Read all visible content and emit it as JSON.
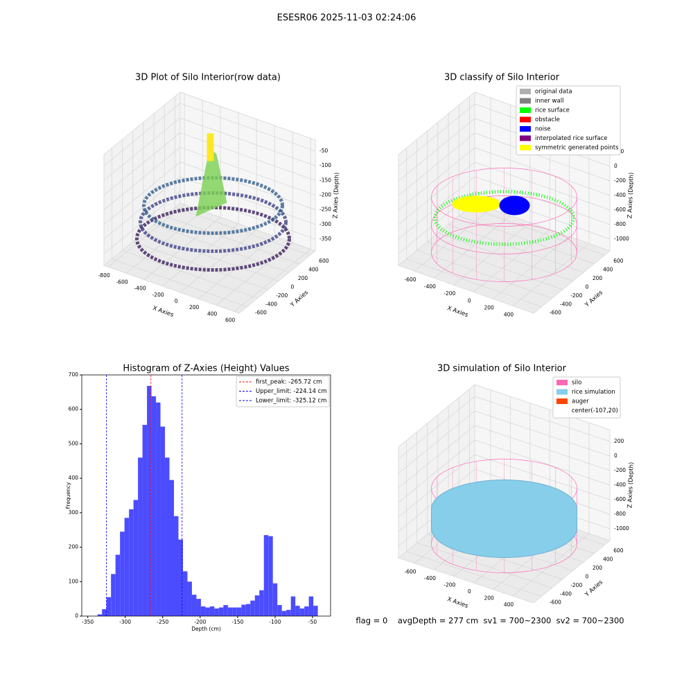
{
  "title": "ESESR06 2025-11-03 02:24:06",
  "footer": "flag = 0    avgDepth = 277 cm  sv1 = 700~2300  sv2 = 700~2300",
  "chart_data": [
    {
      "type": "scatter3d",
      "title": "3D Plot of Silo Interior(row data)",
      "x_label": "X Axies",
      "y_label": "Y Axies",
      "z_label": "Z Axies (Depth)",
      "xlim": [
        -847,
        653
      ],
      "ylim": [
        -750,
        700
      ],
      "zlim": [
        -390,
        -12
      ],
      "xticks": [
        -800,
        -600,
        -400,
        -200,
        0,
        200,
        400,
        600
      ],
      "yticks": [
        -600,
        -400,
        -200,
        0,
        200,
        400,
        600
      ],
      "zticks": [
        -350,
        -300,
        -250,
        -200,
        -150,
        -100,
        -50
      ]
    },
    {
      "type": "scatter3d",
      "title": "3D classify of Silo Interior",
      "x_label": "X Axies",
      "y_label": "Y Axies",
      "z_label": "Z Axies (Depth)",
      "xlim": [
        -762,
        611
      ],
      "ylim": [
        -750,
        700
      ],
      "zlim": [
        -1162,
        362
      ],
      "xticks": [
        -600,
        -400,
        -200,
        0,
        200,
        400
      ],
      "yticks": [
        -600,
        -400,
        -200,
        0,
        200,
        400,
        600
      ],
      "zticks": [
        -1000,
        -800,
        -600,
        -400,
        -200,
        0,
        200
      ],
      "series": [
        {
          "name": "original data",
          "color": "#b0b0b0"
        },
        {
          "name": "inner wall",
          "color": "#808080"
        },
        {
          "name": "rice surface",
          "color": "#00ff00"
        },
        {
          "name": "obstacle",
          "color": "#ff0000"
        },
        {
          "name": "noise",
          "color": "#0000ff"
        },
        {
          "name": "interpolated rice surface",
          "color": "#800080"
        },
        {
          "name": "symmetric generated points",
          "color": "#ffff00"
        }
      ]
    },
    {
      "type": "histogram",
      "title": "Histogram of Z-Axies (Height) Values",
      "x_label": "Depth (cm)",
      "y_label": "Frequency",
      "color": "#4c4cff",
      "xlim": [
        -358,
        -26
      ],
      "ylim": [
        0,
        700
      ],
      "xticks": [
        -350,
        -300,
        -250,
        -200,
        -150,
        -100,
        -50
      ],
      "yticks": [
        0,
        100,
        200,
        300,
        400,
        500,
        600,
        700
      ],
      "bins": [
        -337,
        -331,
        -325,
        -319,
        -313,
        -307,
        -301,
        -295,
        -289,
        -283,
        -277,
        -271,
        -265,
        -259,
        -253,
        -247,
        -241,
        -235,
        -229,
        -223,
        -217,
        -211,
        -205,
        -199,
        -193,
        -187,
        -181,
        -175,
        -169,
        -163,
        -157,
        -151,
        -145,
        -139,
        -133,
        -127,
        -121,
        -115,
        -109,
        -103,
        -97,
        -91,
        -85,
        -79,
        -73,
        -67,
        -61,
        -55,
        -49,
        -43
      ],
      "values": [
        5,
        20,
        55,
        122,
        178,
        245,
        285,
        310,
        337,
        460,
        555,
        668,
        638,
        620,
        550,
        460,
        395,
        290,
        222,
        130,
        100,
        62,
        50,
        28,
        25,
        28,
        22,
        25,
        32,
        25,
        25,
        25,
        33,
        35,
        45,
        60,
        75,
        235,
        232,
        95,
        32,
        15,
        18,
        57,
        30,
        22,
        28,
        57,
        30
      ],
      "lines": [
        {
          "name": "first_peak: -265.72 cm",
          "value": -265.72,
          "color": "#ff0000"
        },
        {
          "name": "Upper_limit: -224.14 cm",
          "value": -224.14,
          "color": "#0000ff"
        },
        {
          "name": "Lower_limit: -325.12 cm",
          "value": -325.12,
          "color": "#0000ff"
        }
      ]
    },
    {
      "type": "surface3d",
      "title": "3D simulation of Silo Interior",
      "x_label": "X Axies",
      "y_label": "Y Axies",
      "z_label": "Z Axies (Depth)",
      "xlim": [
        -762,
        611
      ],
      "ylim": [
        -750,
        700
      ],
      "zlim": [
        -1162,
        362
      ],
      "xticks": [
        -600,
        -400,
        -200,
        0,
        200,
        400
      ],
      "yticks": [
        -600,
        -400,
        -200,
        0,
        200,
        400,
        600
      ],
      "zticks": [
        -1000,
        -800,
        -600,
        -400,
        -200,
        0,
        200
      ],
      "series": [
        {
          "name": "silo",
          "color": "#ff69b4"
        },
        {
          "name": "rice simulation",
          "color": "#87ceeb"
        },
        {
          "name": "auger",
          "color": "#ff4500"
        },
        {
          "name": "center(-107,20)",
          "color": "#ffffff"
        }
      ]
    }
  ]
}
